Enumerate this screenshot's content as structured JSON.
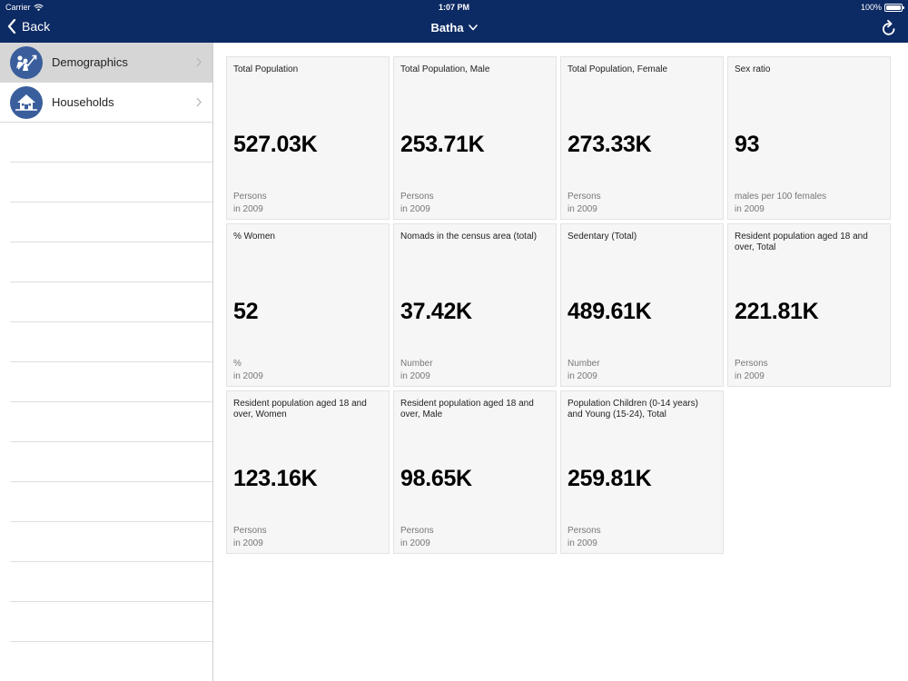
{
  "status": {
    "carrier": "Carrier",
    "time": "1:07 PM",
    "battery": "100%",
    "battery_level": 1.0
  },
  "nav": {
    "back_label": "Back",
    "title": "Batha"
  },
  "sidebar": {
    "items": [
      {
        "label": "Demographics",
        "icon": "people-chart-icon",
        "selected": true
      },
      {
        "label": "Households",
        "icon": "house-icon",
        "selected": false
      }
    ]
  },
  "cards": [
    {
      "title": "Total Population",
      "value": "527.03K",
      "unit": "Persons",
      "year": "in 2009"
    },
    {
      "title": "Total Population, Male",
      "value": "253.71K",
      "unit": "Persons",
      "year": "in 2009"
    },
    {
      "title": "Total Population, Female",
      "value": "273.33K",
      "unit": "Persons",
      "year": "in 2009"
    },
    {
      "title": "Sex ratio",
      "value": "93",
      "unit": "males per 100 females",
      "year": "in 2009"
    },
    {
      "title": "% Women",
      "value": "52",
      "unit": "%",
      "year": "in 2009"
    },
    {
      "title": "Nomads in the census area (total)",
      "value": "37.42K",
      "unit": "Number",
      "year": "in 2009"
    },
    {
      "title": "Sedentary (Total)",
      "value": "489.61K",
      "unit": "Number",
      "year": "in 2009"
    },
    {
      "title": "Resident population aged 18 and over, Total",
      "value": "221.81K",
      "unit": "Persons",
      "year": "in 2009"
    },
    {
      "title": "Resident population aged 18 and over, Women",
      "value": "123.16K",
      "unit": "Persons",
      "year": "in 2009"
    },
    {
      "title": "Resident population aged 18 and over, Male",
      "value": "98.65K",
      "unit": "Persons",
      "year": "in 2009"
    },
    {
      "title": "Population Children (0-14 years) and Young (15-24), Total",
      "value": "259.81K",
      "unit": "Persons",
      "year": "in 2009"
    }
  ],
  "colors": {
    "navbar": "#0c2a63",
    "icon_bg": "#3a5e9c",
    "selected_row": "#d6d6d6",
    "card_bg": "#f6f6f6"
  }
}
